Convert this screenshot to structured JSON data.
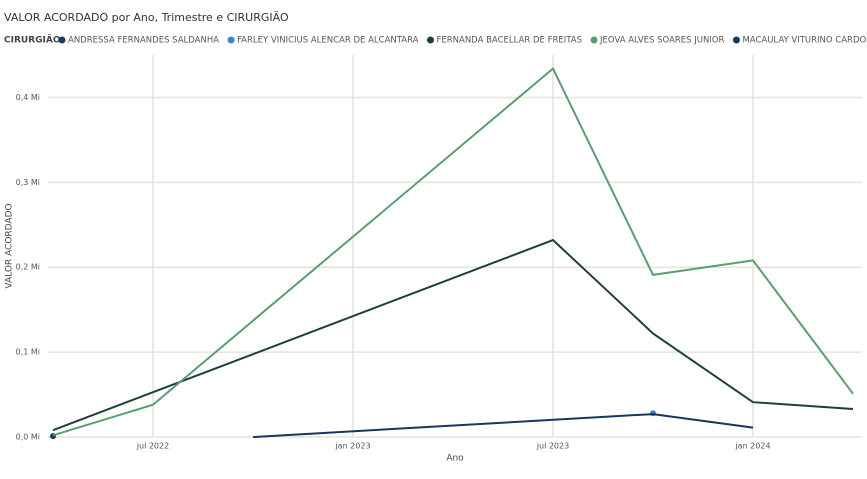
{
  "chart_data": {
    "type": "line",
    "title": "VALOR ACORDADO por Ano, Trimestre e CIRURGIÃO",
    "legend_title": "CIRURGIÃO",
    "x_label": "Ano",
    "y_label": "VALOR ACORDADO",
    "xlim": [
      "2022-04",
      "2024-04"
    ],
    "xticks": [
      {
        "value": "2022-07",
        "label": "jul 2022"
      },
      {
        "value": "2023-01",
        "label": "jan 2023"
      },
      {
        "value": "2023-07",
        "label": "jul 2023"
      },
      {
        "value": "2024-01",
        "label": "jan 2024"
      }
    ],
    "ylim": [
      0,
      0.45
    ],
    "yticks": [
      {
        "value": 0,
        "label": "0,0 Mi"
      },
      {
        "value": 0.1,
        "label": "0,1 Mi"
      },
      {
        "value": 0.2,
        "label": "0,2 Mi"
      },
      {
        "value": 0.3,
        "label": "0,3 Mi"
      },
      {
        "value": 0.4,
        "label": "0,4 Mi"
      }
    ],
    "grid": true,
    "series": [
      {
        "name": "ANDRESSA FERNANDES SALDANHA",
        "color": "#1c3e5e",
        "x": [
          "2022-04"
        ],
        "values": [
          0.001
        ]
      },
      {
        "name": "FARLEY VINICIUS ALENCAR DE ALCANTARA",
        "color": "#3a84d8",
        "x": [
          "2023-10"
        ],
        "values": [
          0.028
        ]
      },
      {
        "name": "FERNANDA BACELLAR DE FREITAS",
        "color": "#1d3f3d",
        "x": [
          "2022-04",
          "2023-07",
          "2023-10",
          "2024-01",
          "2024-04"
        ],
        "values": [
          0.008,
          0.232,
          0.122,
          0.041,
          0.033
        ]
      },
      {
        "name": "JEOVA ALVES SOARES JUNIOR",
        "color": "#5a9e6f",
        "x": [
          "2022-04",
          "2022-07",
          "2023-07",
          "2023-10",
          "2024-01",
          "2024-04"
        ],
        "values": [
          0.002,
          0.038,
          0.434,
          0.191,
          0.208,
          0.051
        ]
      },
      {
        "name": "MACAULAY VITURINO CARDOSO",
        "color": "#17375e",
        "x": [
          "2022-10",
          "2023-10",
          "2024-01"
        ],
        "values": [
          0.0,
          0.027,
          0.011
        ]
      }
    ]
  }
}
